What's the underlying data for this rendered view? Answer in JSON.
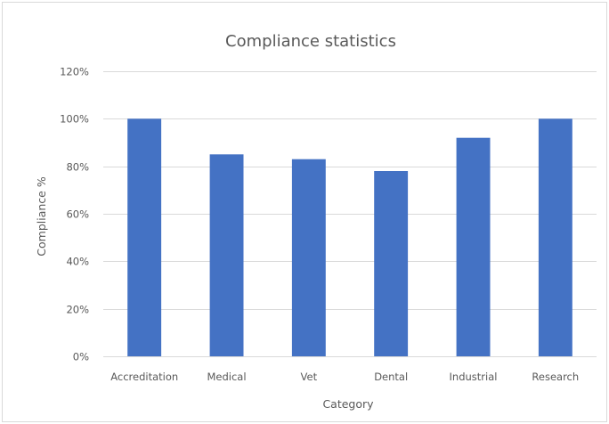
{
  "chart_data": {
    "type": "bar",
    "title": "Compliance statistics",
    "xlabel": "Category",
    "ylabel": "Compliance %",
    "categories": [
      "Accreditation",
      "Medical",
      "Vet",
      "Dental",
      "Industrial",
      "Research"
    ],
    "values": [
      100,
      85,
      83,
      78,
      92,
      100
    ],
    "ylim": [
      0,
      120
    ],
    "yticks": [
      0,
      20,
      40,
      60,
      80,
      100,
      120
    ],
    "ytick_labels": [
      "0%",
      "20%",
      "40%",
      "60%",
      "80%",
      "100%",
      "120%"
    ],
    "grid": true,
    "legend": "none",
    "colors": {
      "bar": "#4472c4"
    }
  }
}
